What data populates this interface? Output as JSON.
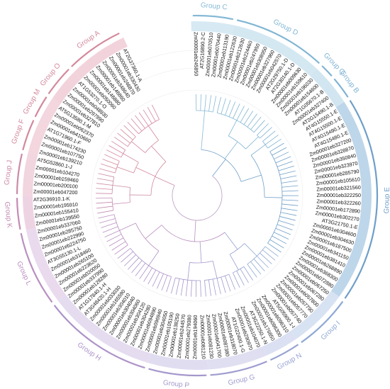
{
  "groups": [
    {
      "key": "A",
      "label": "Group A",
      "color": "#d3889b",
      "band_fill": "#f2d3db",
      "leaves": [
        "AT2G37360.1-A",
        "Zm00001eb330430",
        "Zm00001eb246870",
        "Zm00001eb348640",
        "Zm00001eb146860",
        "Zm00001eb146880",
        "Zm00001eb050060"
      ]
    },
    {
      "key": "O",
      "label": "Group O",
      "color": "#d3889b",
      "band_fill": "#f2d3db",
      "leaves": [
        "AT1G53270.1-O",
        "Zm00001eb048930",
        "Zm00001eb297990",
        "Zm00001eb327810"
      ]
    },
    {
      "key": "M",
      "label": "Group M",
      "color": "#d3889b",
      "band_fill": "#f3d6de",
      "leaves": [
        "AT5G13580.1-M",
        "Zm00001eb062370",
        "Zm00001eb410660"
      ]
    },
    {
      "key": "F",
      "label": "Group F",
      "color": "#d3889b",
      "band_fill": "#f3d6de",
      "leaves": [
        "AT1G71960.1-F",
        "Zm00001eb174230",
        "Zm00001eb107750",
        "Zm00001eb139210"
      ]
    },
    {
      "key": "J",
      "label": "Group J",
      "color": "#cc8aa6",
      "band_fill": "#f1d5df",
      "leaves": [
        "AT5G52860.1-J",
        "Zm00001eb104270",
        "Zm00001eb159460",
        "Zm00001eb200100",
        "Zm00001eb047200"
      ]
    },
    {
      "key": "K",
      "label": "Group K",
      "color": "#c48bb3",
      "band_fill": "#eed4e3",
      "leaves": [
        "AT2G36910.1-K",
        "Zm00001eb195910",
        "Zm00001eb155410",
        "Zm00001eb139550"
      ]
    },
    {
      "key": "L",
      "label": "Group L",
      "color": "#b98fc0",
      "band_fill": "#eadaee",
      "leaves": [
        "Zm00001eb337060",
        "Zm00001eb285750",
        "Zm00001eb222990",
        "Zm00001eb224750",
        "AT3G55130.1-L",
        "Zm00001eb318460",
        "Zm00001eb265100",
        "Zm00001eb223620",
        "Zm00001eb020050"
      ]
    },
    {
      "key": "H",
      "label": "Group H",
      "color": "#ad93c9",
      "band_fill": "#e5dcf0",
      "leaves": [
        "Zm00001eb337990",
        "Zm00001eb128280",
        "AT1G17840.1-H",
        "AT3G48420.1-H",
        "Zm00001eb033030",
        "Zm00001eb165590",
        "Zm00001eb304010",
        "Zm00001eb304040",
        "Zm00001eb304060",
        "Zm00001eb304120",
        "Zm00001eb304280",
        "Zm00001eb094890",
        "Zm00001eb096940"
      ]
    },
    {
      "key": "P",
      "label": "Group P",
      "color": "#a597cc",
      "band_fill": "#e1ddf1",
      "leaves": [
        "Zm00001eb304050",
        "Zm00001eb105190",
        "Zm00001eb138250",
        "Zm00001eb244570",
        "Zm00001eb279380",
        "Zm00001eb194060",
        "Zm00001eb081210"
      ]
    },
    {
      "key": "G",
      "label": "Group G",
      "color": "#9e9ccf",
      "band_fill": "#dfdff1",
      "leaves": [
        "Zm00001eb081230",
        "Zm00001eb041700",
        "Zm00001eb087380",
        "Zm00001eb318070",
        "AT1G22400.1-G",
        "Zm00001eb290970",
        "Zm00001eb104070"
      ]
    },
    {
      "key": "N",
      "label": "Group N",
      "color": "#97a2d2",
      "band_fill": "#dbe1f2",
      "leaves": [
        "AT3G22250.1-N",
        "Zm00001eb176850",
        "Zm00001eb096300",
        "Zm00001eb096310"
      ]
    },
    {
      "key": "I",
      "label": "Group I",
      "color": "#8fa9d5",
      "band_fill": "#d7e2f2",
      "leaves": [
        "AT5G05900.1-I",
        "Zm00001eb057740",
        "Zm00001eb057770",
        "Zm00001eb057790",
        "Zm00001eb057800",
        "Zm00001eb067280",
        "Zm00001eb067250"
      ]
    },
    {
      "key": "E",
      "label": "Group E",
      "color": "#6f9fc9",
      "band_fill": "#bed6ea",
      "leaves": [
        "Zm00001eb072880",
        "Zm00001eb368300",
        "Zm00001eb268890",
        "Zm00001eb381410",
        "Zm00001eb341150",
        "Zm00001eb187500",
        "Zm00001eb304630",
        "Zm00001eb304600",
        "AT3G21750.1-E",
        "Zm00001eb302270",
        "Zm00001eb172890",
        "Zm00001eb322260",
        "Zm00001eb322250",
        "Zm00001eb321560",
        "Zm00001eb105610",
        "Zm00001eb285790",
        "Zm00001eb323970",
        "Zm00001eb350840",
        "Zm00001eb328870",
        "Zm00001eb327200",
        "AT4G15480.1-E",
        "AT4G15490.1-E",
        "AT4G15500.1-E",
        "AT4G15550.1-E"
      ]
    },
    {
      "key": "B",
      "label": "Group B",
      "color": "#7fb3d3",
      "band_fill": "#d2e6f1",
      "leaves": [
        "AT2G15490.1-B",
        "Zm00001eb327400",
        "AT1G05670.1-B"
      ]
    },
    {
      "key": "Q",
      "label": "Group Q",
      "color": "#7fb3d3",
      "band_fill": "#d2e6f1",
      "leaves": [
        "Zm00001eb154600",
        "Zm00001eb196030"
      ]
    },
    {
      "key": "D",
      "label": "Group D",
      "color": "#80b6d4",
      "band_fill": "#d4e8f2",
      "leaves": [
        "Zm00001eb159610",
        "Zm00001eb009630",
        "AT2G30140.1-D",
        "AT2G29750.1-D",
        "Zm00001eb042570",
        "Zm00001eb327960",
        "Zm00001eb308950",
        "Zm00001eb247950",
        "Zm00001eb224460",
        "Zm00001eb212630",
        "Zm00001eb122630"
      ]
    },
    {
      "key": "C",
      "label": "Group C",
      "color": "#86b9d6",
      "band_fill": "#d7eaf3",
      "leaves": [
        "Zm00001eb113190",
        "Zm00001eb070440",
        "Zm00001eb070510",
        "AT2G16890.2-C",
        "Zm00001eb245850"
      ]
    }
  ]
}
